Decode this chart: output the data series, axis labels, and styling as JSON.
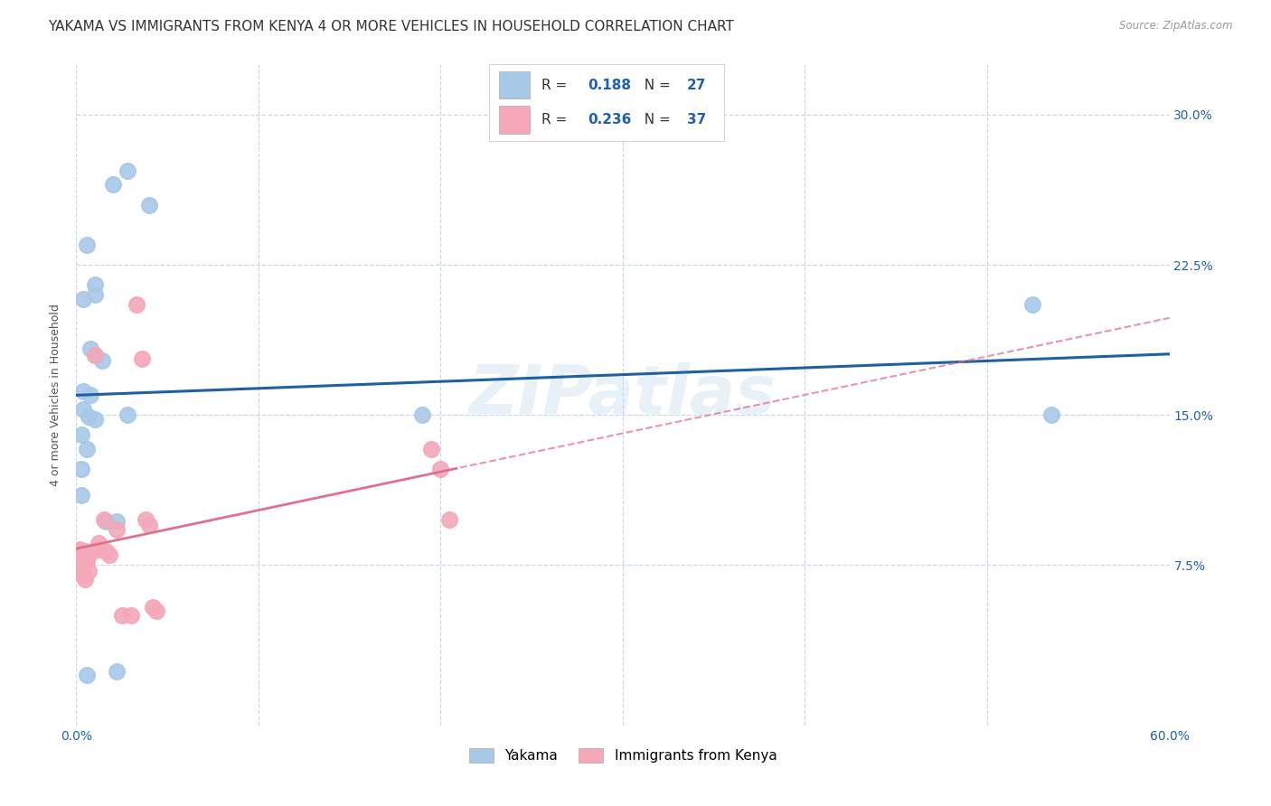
{
  "title": "YAKAMA VS IMMIGRANTS FROM KENYA 4 OR MORE VEHICLES IN HOUSEHOLD CORRELATION CHART",
  "source": "Source: ZipAtlas.com",
  "ylabel": "4 or more Vehicles in Household",
  "xlim": [
    0.0,
    0.6
  ],
  "ylim": [
    -0.005,
    0.325
  ],
  "xticks": [
    0.0,
    0.1,
    0.2,
    0.3,
    0.4,
    0.5,
    0.6
  ],
  "yticks": [
    0.075,
    0.15,
    0.225,
    0.3
  ],
  "ytick_labels": [
    "7.5%",
    "15.0%",
    "22.5%",
    "30.0%"
  ],
  "xtick_labels": [
    "0.0%",
    "",
    "",
    "",
    "",
    "",
    "60.0%"
  ],
  "watermark": "ZIPatlas",
  "yakama_color": "#a8c8e8",
  "kenya_color": "#f4a8b8",
  "yakama_line_color": "#2060a0",
  "kenya_line_color": "#e07090",
  "background_color": "#ffffff",
  "grid_color": "#c8d8ec",
  "title_fontsize": 11,
  "axis_label_fontsize": 9,
  "tick_fontsize": 10,
  "legend_box_color": "#a8c8e8",
  "legend_box_color2": "#f4a8b8",
  "yakama_R": "0.188",
  "yakama_N": "27",
  "kenya_R": "0.236",
  "kenya_N": "37",
  "yakama_points": [
    [
      0.01,
      0.215
    ],
    [
      0.01,
      0.21
    ],
    [
      0.02,
      0.265
    ],
    [
      0.028,
      0.272
    ],
    [
      0.04,
      0.255
    ],
    [
      0.004,
      0.208
    ],
    [
      0.006,
      0.235
    ],
    [
      0.008,
      0.183
    ],
    [
      0.01,
      0.18
    ],
    [
      0.014,
      0.177
    ],
    [
      0.004,
      0.162
    ],
    [
      0.008,
      0.16
    ],
    [
      0.004,
      0.153
    ],
    [
      0.007,
      0.149
    ],
    [
      0.01,
      0.148
    ],
    [
      0.003,
      0.14
    ],
    [
      0.006,
      0.133
    ],
    [
      0.028,
      0.15
    ],
    [
      0.003,
      0.123
    ],
    [
      0.19,
      0.15
    ],
    [
      0.003,
      0.11
    ],
    [
      0.016,
      0.097
    ],
    [
      0.022,
      0.097
    ],
    [
      0.006,
      0.02
    ],
    [
      0.022,
      0.022
    ],
    [
      0.525,
      0.205
    ],
    [
      0.535,
      0.15
    ]
  ],
  "kenya_points": [
    [
      0.002,
      0.083
    ],
    [
      0.002,
      0.081
    ],
    [
      0.002,
      0.079
    ],
    [
      0.003,
      0.078
    ],
    [
      0.003,
      0.077
    ],
    [
      0.003,
      0.076
    ],
    [
      0.003,
      0.075
    ],
    [
      0.003,
      0.074
    ],
    [
      0.004,
      0.073
    ],
    [
      0.004,
      0.072
    ],
    [
      0.004,
      0.071
    ],
    [
      0.004,
      0.07
    ],
    [
      0.005,
      0.068
    ],
    [
      0.005,
      0.082
    ],
    [
      0.005,
      0.08
    ],
    [
      0.006,
      0.079
    ],
    [
      0.006,
      0.077
    ],
    [
      0.007,
      0.072
    ],
    [
      0.008,
      0.081
    ],
    [
      0.01,
      0.18
    ],
    [
      0.012,
      0.086
    ],
    [
      0.012,
      0.083
    ],
    [
      0.015,
      0.098
    ],
    [
      0.016,
      0.082
    ],
    [
      0.018,
      0.08
    ],
    [
      0.022,
      0.093
    ],
    [
      0.025,
      0.05
    ],
    [
      0.03,
      0.05
    ],
    [
      0.033,
      0.205
    ],
    [
      0.036,
      0.178
    ],
    [
      0.038,
      0.098
    ],
    [
      0.04,
      0.095
    ],
    [
      0.042,
      0.054
    ],
    [
      0.044,
      0.052
    ],
    [
      0.195,
      0.133
    ],
    [
      0.2,
      0.123
    ],
    [
      0.205,
      0.098
    ]
  ]
}
